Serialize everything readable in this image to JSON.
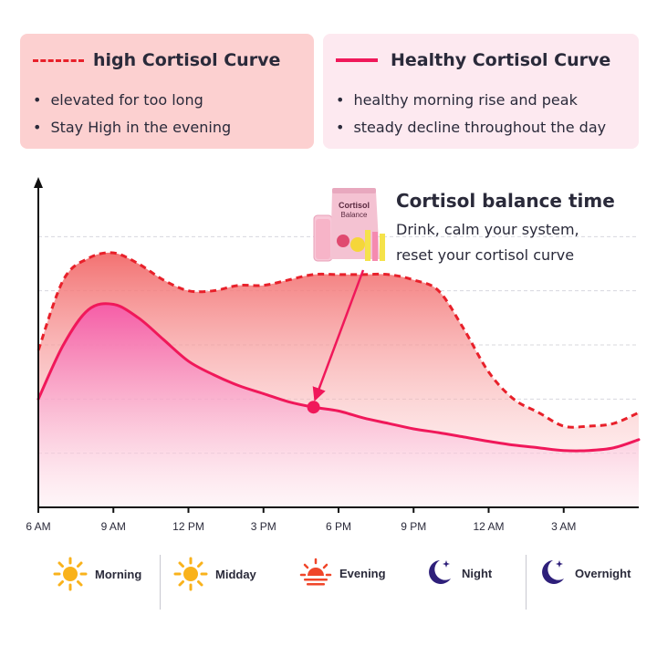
{
  "legend": {
    "high": {
      "title": "high Cortisol Curve",
      "bullets": [
        "elevated for too long",
        "Stay High in the evening"
      ],
      "color": "#e8202a",
      "box_color": "#fcd0d0"
    },
    "healthy": {
      "title": "Healthy Cortisol Curve",
      "bullets": [
        "healthy morning rise and peak",
        "steady decline throughout the day"
      ],
      "color": "#f0185a",
      "box_color": "#fde9f0"
    }
  },
  "callout": {
    "title": "Cortisol balance time",
    "lines": [
      "Drink, calm your system,",
      "reset your cortisol curve"
    ],
    "product_text": [
      "Cortisol",
      "Balance"
    ]
  },
  "chart_data": {
    "type": "area",
    "x_unit": "hours after 6 AM",
    "x_tick_labels": [
      "6 AM",
      "9 AM",
      "12 PM",
      "3 PM",
      "6 PM",
      "9 PM",
      "12 AM",
      "3 AM"
    ],
    "x_ticks": [
      0,
      3,
      6,
      9,
      12,
      15,
      18,
      21
    ],
    "xlim": [
      0,
      24
    ],
    "ylim": [
      0,
      6
    ],
    "grid": true,
    "series": [
      {
        "name": "high Cortisol Curve",
        "style": "dashed",
        "color": "#e8202a",
        "x": [
          0,
          1,
          2,
          3,
          4,
          5,
          6,
          7,
          8,
          9,
          10,
          11,
          12,
          13,
          14,
          15,
          16,
          17,
          18,
          19,
          20,
          21,
          22,
          23,
          24
        ],
        "y": [
          2.9,
          4.2,
          4.6,
          4.7,
          4.5,
          4.2,
          4.0,
          4.0,
          4.1,
          4.1,
          4.2,
          4.3,
          4.3,
          4.3,
          4.3,
          4.2,
          4.0,
          3.3,
          2.5,
          2.0,
          1.75,
          1.5,
          1.5,
          1.55,
          1.75
        ]
      },
      {
        "name": "Healthy Cortisol Curve",
        "style": "solid",
        "color": "#f0185a",
        "x": [
          0,
          1,
          2,
          3,
          4,
          5,
          6,
          7,
          8,
          9,
          10,
          11,
          12,
          13,
          14,
          15,
          16,
          17,
          18,
          19,
          20,
          21,
          22,
          23,
          24
        ],
        "y": [
          2.0,
          3.0,
          3.65,
          3.75,
          3.5,
          3.1,
          2.7,
          2.45,
          2.25,
          2.1,
          1.95,
          1.85,
          1.78,
          1.65,
          1.55,
          1.45,
          1.38,
          1.3,
          1.22,
          1.15,
          1.1,
          1.05,
          1.05,
          1.1,
          1.25
        ]
      }
    ],
    "annotations": [
      {
        "type": "marker",
        "series": "Healthy Cortisol Curve",
        "x": 11,
        "y": 1.85,
        "label": "Cortisol balance time"
      }
    ]
  },
  "periods": [
    {
      "label": "Morning",
      "icon": "sun-icon"
    },
    {
      "label": "Midday",
      "icon": "sun-icon"
    },
    {
      "label": "Evening",
      "icon": "sunset-icon"
    },
    {
      "label": "Night",
      "icon": "moon-icon"
    },
    {
      "label": "Overnight",
      "icon": "moon-icon"
    }
  ]
}
